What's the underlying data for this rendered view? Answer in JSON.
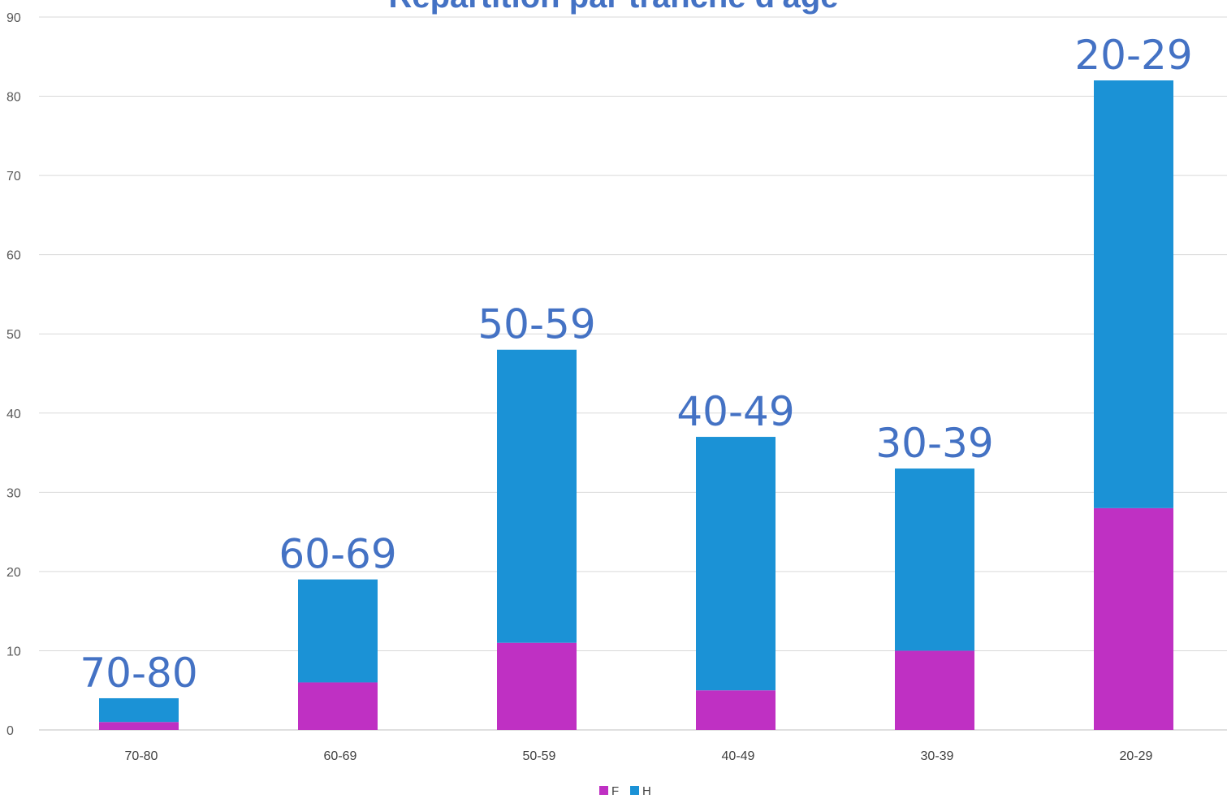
{
  "chart_data": {
    "type": "bar",
    "stacked": true,
    "title": "Répartition par tranche d'âge",
    "categories": [
      "70-80",
      "60-69",
      "50-59",
      "40-49",
      "30-39",
      "20-29"
    ],
    "series": [
      {
        "name": "F",
        "color": "#bf30c3",
        "values": [
          1,
          6,
          11,
          5,
          10,
          28
        ]
      },
      {
        "name": "H",
        "color": "#1b92d6",
        "values": [
          3,
          13,
          37,
          32,
          23,
          54
        ]
      }
    ],
    "data_labels": [
      "70-80",
      "60-69",
      "50-59",
      "40-49",
      "30-39",
      "20-29"
    ],
    "ylim": [
      0,
      90
    ],
    "yticks": [
      0,
      10,
      20,
      30,
      40,
      50,
      60,
      70,
      80,
      90
    ],
    "grid": true,
    "legend": "bottom-center"
  }
}
